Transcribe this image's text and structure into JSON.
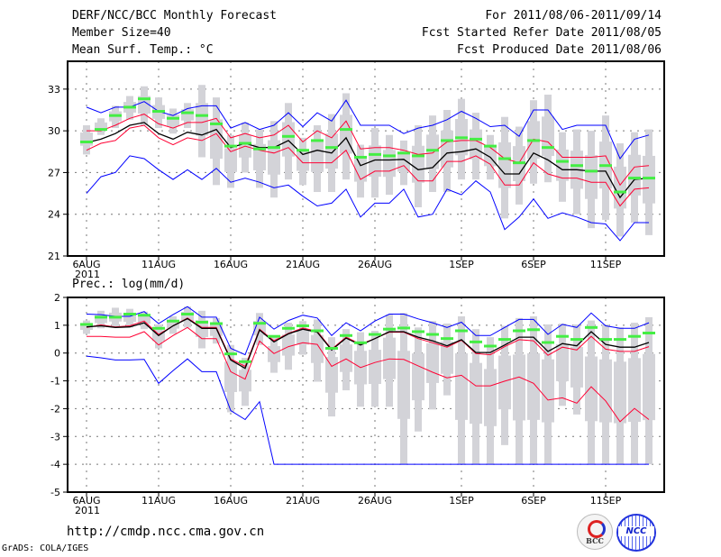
{
  "header": {
    "title": "DERF/NCC/BCC Monthly Forecast",
    "member_size": "Member Size=40",
    "variable": "Mean Surf. Temp.: °C",
    "forecast_period": "For 2011/08/06-2011/09/14",
    "started_date": "Fcst Started Refer Date 2011/08/05",
    "produced_date": "Fcst Produced Date 2011/08/06"
  },
  "footer": {
    "url": "http://cmdp.ncc.cma.gov.cn",
    "credit": "GrADS: COLA/IGES",
    "logos": [
      "BCC",
      "NCC"
    ]
  },
  "colors": {
    "max_min": "#0000ff",
    "spread": "#ff0033",
    "mean": "#000000",
    "marker": "#44ee44",
    "range": "#d3d3d8"
  },
  "chart_data": [
    {
      "type": "line",
      "title": "Mean Surf. Temp.: °C",
      "ylabel": "°C",
      "ylim": [
        21,
        35
      ],
      "yticks": [
        "21",
        "24",
        "27",
        "30",
        "33"
      ],
      "yticks_values": [
        21,
        24,
        27,
        30,
        33
      ],
      "xtick_labels": [
        "6AUG",
        "11AUG",
        "16AUG",
        "21AUG",
        "26AUG",
        "1SEP",
        "6SEP",
        "11SEP"
      ],
      "xtick_days": [
        0,
        5,
        10,
        15,
        20,
        26,
        31,
        36
      ],
      "year_label": "2011",
      "grid": true,
      "series": [
        {
          "name": "ensemble max",
          "color": "#0000ff",
          "values": [
            31.7,
            31.3,
            31.7,
            31.7,
            32.1,
            31.4,
            31.1,
            31.6,
            31.8,
            31.8,
            30.2,
            30.6,
            30.1,
            30.4,
            31.3,
            30.3,
            31.3,
            30.7,
            32.2,
            30.4,
            30.4,
            30.4,
            29.8,
            30.2,
            30.4,
            30.8,
            31.4,
            30.9,
            30.3,
            30.4,
            29.6,
            31.5,
            31.5,
            30.1,
            30.4,
            30.4,
            30.4,
            28.0,
            29.4,
            29.7
          ]
        },
        {
          "name": "ensemble min",
          "color": "#0000ff",
          "values": [
            25.5,
            26.7,
            27.0,
            28.2,
            28.0,
            27.2,
            26.5,
            27.2,
            26.5,
            27.3,
            26.3,
            26.6,
            26.3,
            25.9,
            26.1,
            25.3,
            24.6,
            24.8,
            25.8,
            23.8,
            24.8,
            24.8,
            25.8,
            23.8,
            24.0,
            25.8,
            25.4,
            26.4,
            25.6,
            22.9,
            23.8,
            25.1,
            23.7,
            24.1,
            23.8,
            23.4,
            23.3,
            22.1,
            23.4,
            23.4
          ]
        },
        {
          "name": "upper spread",
          "color": "#ff0033",
          "values": [
            30.0,
            30.0,
            30.4,
            30.9,
            31.2,
            30.5,
            30.2,
            30.6,
            30.6,
            30.9,
            29.5,
            29.8,
            29.5,
            29.7,
            30.4,
            29.2,
            30.0,
            29.5,
            30.7,
            28.7,
            28.8,
            28.8,
            28.6,
            28.3,
            28.4,
            29.2,
            29.3,
            29.3,
            28.8,
            28.0,
            27.7,
            29.4,
            29.2,
            28.1,
            28.1,
            28.1,
            28.2,
            26.1,
            27.4,
            27.5
          ]
        },
        {
          "name": "lower spread",
          "color": "#ff0033",
          "values": [
            28.6,
            29.1,
            29.3,
            30.2,
            30.4,
            29.5,
            29.0,
            29.5,
            29.3,
            29.8,
            28.5,
            28.9,
            28.6,
            28.4,
            28.8,
            27.7,
            27.7,
            27.7,
            28.6,
            26.5,
            27.1,
            27.1,
            27.5,
            26.4,
            26.4,
            27.8,
            27.8,
            28.2,
            27.6,
            26.1,
            26.1,
            27.7,
            26.9,
            26.6,
            26.6,
            26.3,
            26.3,
            24.6,
            25.8,
            25.9
          ]
        },
        {
          "name": "ensemble mean",
          "color": "#000000",
          "values": [
            29.15,
            29.4,
            29.8,
            30.4,
            30.6,
            29.8,
            29.4,
            29.9,
            29.7,
            30.1,
            28.8,
            29.1,
            28.8,
            28.8,
            29.3,
            28.3,
            28.6,
            28.4,
            29.5,
            27.5,
            27.9,
            27.9,
            27.95,
            27.2,
            27.35,
            28.4,
            28.5,
            28.7,
            28.1,
            26.9,
            26.9,
            28.4,
            27.9,
            27.2,
            27.2,
            27.1,
            27.1,
            25.2,
            26.5,
            26.6
          ]
        }
      ],
      "markers": {
        "name": "green marker",
        "values": [
          29.2,
          30.1,
          31.1,
          31.7,
          32.3,
          31.4,
          30.9,
          31.3,
          31.1,
          30.5,
          28.9,
          29.1,
          28.7,
          28.8,
          29.6,
          28.6,
          29.3,
          28.8,
          30.1,
          28.1,
          28.3,
          28.2,
          28.4,
          28.2,
          28.6,
          29.3,
          29.5,
          29.4,
          28.9,
          28.0,
          27.7,
          29.3,
          28.8,
          27.8,
          27.5,
          27.1,
          27.5,
          25.6,
          26.6,
          26.6
        ]
      },
      "range_bars": {
        "high": [
          30.4,
          30.9,
          31.8,
          32.5,
          33.2,
          32.4,
          31.6,
          32.0,
          33.3,
          32.4,
          29.7,
          30.6,
          30.1,
          30.7,
          32.0,
          29.5,
          30.4,
          31.2,
          32.7,
          29.0,
          30.2,
          29.7,
          29.3,
          30.4,
          31.1,
          31.5,
          32.3,
          31.3,
          29.7,
          31.0,
          30.3,
          32.2,
          32.6,
          29.9,
          30.1,
          30.0,
          31.1,
          29.1,
          29.9,
          30.1
        ],
        "low": [
          28.3,
          29.7,
          30.2,
          30.8,
          30.4,
          30.2,
          29.8,
          30.2,
          28.1,
          26.1,
          25.9,
          27.0,
          25.9,
          25.2,
          26.5,
          26.1,
          25.6,
          25.6,
          26.5,
          25.2,
          25.2,
          25.4,
          26.1,
          24.5,
          25.6,
          25.6,
          26.5,
          26.5,
          26.5,
          23.7,
          24.7,
          26.2,
          26.3,
          24.9,
          24.0,
          23.0,
          23.6,
          22.4,
          23.4,
          22.5
        ]
      }
    },
    {
      "type": "line",
      "title": "Prec.: log(mm/d)",
      "ylabel": "log(mm/d)",
      "ylim": [
        -5,
        2
      ],
      "yticks": [
        "-5",
        "-4",
        "-3",
        "-2",
        "-1",
        "0",
        "1",
        "2"
      ],
      "yticks_values": [
        -5,
        -4,
        -3,
        -2,
        -1,
        0,
        1,
        2
      ],
      "xtick_labels": [
        "6AUG",
        "11AUG",
        "16AUG",
        "21AUG",
        "26AUG",
        "1SEP",
        "6SEP",
        "11SEP"
      ],
      "xtick_days": [
        0,
        5,
        10,
        15,
        20,
        26,
        31,
        36
      ],
      "year_label": "2011",
      "grid": true,
      "series": [
        {
          "name": "ensemble max",
          "color": "#0000ff",
          "values": [
            1.4,
            1.38,
            1.32,
            1.32,
            1.49,
            1.06,
            1.38,
            1.67,
            1.29,
            1.29,
            0.17,
            -0.06,
            1.29,
            0.86,
            1.17,
            1.36,
            1.26,
            0.63,
            1.09,
            0.8,
            1.15,
            1.4,
            1.4,
            1.23,
            1.09,
            0.92,
            1.11,
            0.63,
            0.63,
            0.92,
            1.21,
            1.21,
            0.67,
            1.03,
            0.92,
            1.44,
            0.98,
            0.89,
            0.89,
            1.09
          ]
        },
        {
          "name": "ensemble min",
          "color": "#0000ff",
          "values": [
            -0.11,
            -0.17,
            -0.25,
            -0.25,
            -0.23,
            -1.09,
            -0.63,
            -0.21,
            -0.67,
            -0.67,
            -2.07,
            -2.39,
            -1.75,
            -4,
            -4,
            -4,
            -4,
            -4,
            -4,
            -4,
            -4,
            -4,
            -4,
            -4,
            -4,
            -4,
            -4,
            -4,
            -4,
            -4,
            -4,
            -4,
            -4,
            -4,
            -4,
            -4,
            -4,
            -4,
            -4,
            -4
          ]
        },
        {
          "name": "upper spread",
          "color": "#ff0033",
          "values": [
            0.92,
            1.01,
            0.94,
            0.98,
            1.15,
            0.67,
            0.98,
            1.26,
            0.92,
            0.92,
            -0.21,
            -0.48,
            0.86,
            0.44,
            0.71,
            0.9,
            0.78,
            0.14,
            0.57,
            0.32,
            0.52,
            0.75,
            0.75,
            0.52,
            0.37,
            0.21,
            0.46,
            -0.02,
            -0.06,
            0.23,
            0.48,
            0.44,
            -0.08,
            0.21,
            0.11,
            0.6,
            0.14,
            0.06,
            0.06,
            0.23
          ]
        },
        {
          "name": "lower spread",
          "color": "#ff0033",
          "values": [
            0.6,
            0.6,
            0.57,
            0.57,
            0.77,
            0.29,
            0.63,
            0.92,
            0.52,
            0.52,
            -0.67,
            -0.94,
            0.43,
            -0.02,
            0.23,
            0.37,
            0.31,
            -0.48,
            -0.21,
            -0.52,
            -0.34,
            -0.21,
            -0.23,
            -0.46,
            -0.69,
            -0.89,
            -0.8,
            -1.18,
            -1.18,
            -1.01,
            -0.86,
            -1.09,
            -1.69,
            -1.61,
            -1.8,
            -1.21,
            -1.72,
            -2.47,
            -1.99,
            -2.39
          ]
        },
        {
          "name": "ensemble mean",
          "color": "#000000",
          "values": [
            0.94,
            0.98,
            0.92,
            0.94,
            1.09,
            0.63,
            0.98,
            1.24,
            0.89,
            0.89,
            -0.25,
            -0.55,
            0.83,
            0.4,
            0.69,
            0.86,
            0.75,
            0.11,
            0.54,
            0.29,
            0.52,
            0.77,
            0.77,
            0.57,
            0.44,
            0.26,
            0.48,
            0.02,
            0.02,
            0.29,
            0.57,
            0.57,
            0.06,
            0.34,
            0.26,
            0.77,
            0.31,
            0.21,
            0.21,
            0.38
          ]
        }
      ],
      "markers": {
        "name": "green marker",
        "values": [
          1.03,
          1.29,
          1.29,
          1.4,
          1.36,
          0.89,
          1.15,
          1.4,
          1.11,
          1.06,
          -0.03,
          -0.31,
          1.07,
          0.6,
          0.89,
          0.98,
          0.8,
          0.17,
          0.63,
          0.37,
          0.67,
          0.86,
          0.9,
          0.77,
          0.67,
          0.52,
          0.8,
          0.4,
          0.25,
          0.49,
          0.8,
          0.84,
          0.38,
          0.6,
          0.49,
          0.92,
          0.49,
          0.49,
          0.6,
          0.72
        ]
      },
      "range_bars": {
        "high": [
          1.17,
          1.52,
          1.63,
          1.59,
          1.49,
          1.03,
          1.32,
          1.67,
          1.52,
          1.26,
          0.29,
          -0.17,
          1.44,
          0.57,
          1.09,
          1.15,
          1.21,
          0.57,
          0.86,
          0.75,
          0.8,
          1.38,
          1.44,
          0.92,
          1.15,
          1.06,
          1.32,
          0.86,
          0.57,
          0.98,
          1.26,
          1.32,
          1.03,
          1.06,
          1.03,
          1.17,
          1.03,
          0.92,
          1.09,
          1.29
        ],
        "low": [
          0.69,
          0.89,
          0.92,
          0.92,
          0.86,
          0.17,
          0.69,
          0.92,
          0.17,
          0.34,
          -2.13,
          -1.9,
          0.29,
          -0.71,
          -0.6,
          -0.06,
          -1.03,
          -2.28,
          -1.34,
          -1.93,
          -1.93,
          -1.93,
          -4,
          -2.82,
          -2.03,
          -1.52,
          -4,
          -4,
          -4,
          -3.31,
          -4,
          -4,
          -4,
          -1.9,
          -2.21,
          -4,
          -4,
          -4,
          -4,
          -4
        ]
      }
    }
  ]
}
